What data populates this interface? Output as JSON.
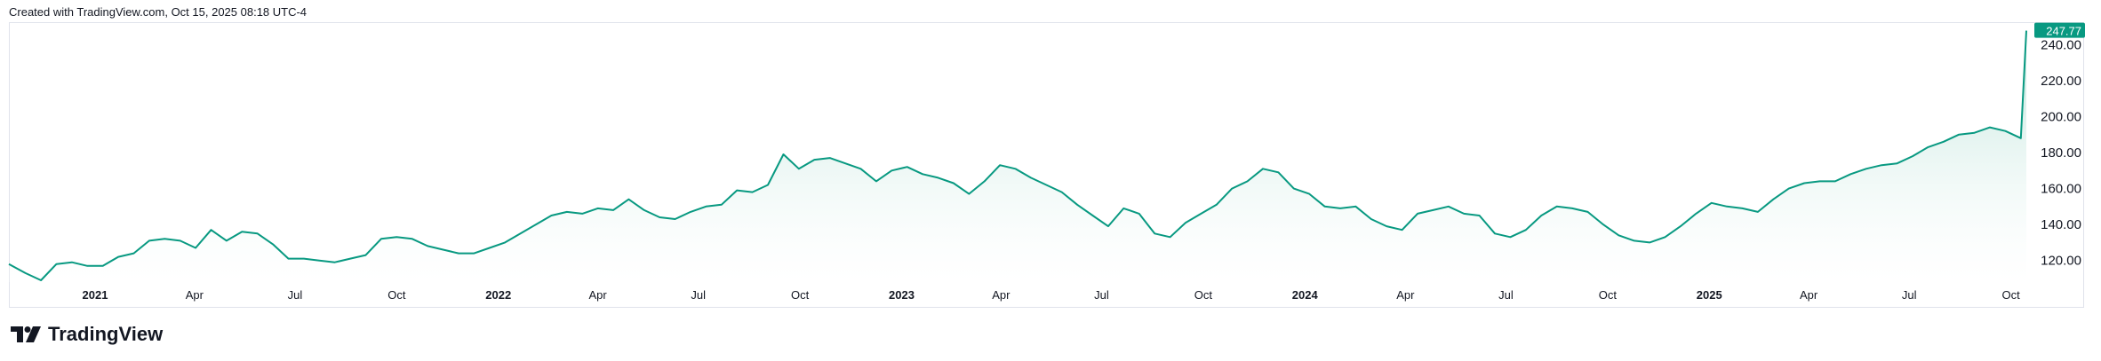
{
  "header": {
    "text": "Created with TradingView.com, Oct 15, 2025 08:18 UTC-4"
  },
  "brand": {
    "name": "TradingView"
  },
  "colors": {
    "line": "#089981",
    "fill_top": "#b2dfd4",
    "fill_bottom": "#ffffff",
    "tag": "#089981"
  },
  "chart_data": {
    "type": "area",
    "title": "",
    "xlabel": "",
    "ylabel": "",
    "y_axis_side": "right",
    "ylim": [
      108,
      252
    ],
    "y_ticks": [
      "120.00",
      "140.00",
      "160.00",
      "180.00",
      "200.00",
      "220.00",
      "240.00"
    ],
    "last_price_label": "247.77",
    "x_tick_labels": [
      {
        "label": "2021",
        "date": "2021-01-01",
        "bold": true
      },
      {
        "label": "Apr",
        "date": "2021-04-01",
        "bold": false
      },
      {
        "label": "Jul",
        "date": "2021-07-01",
        "bold": false
      },
      {
        "label": "Oct",
        "date": "2021-10-01",
        "bold": false
      },
      {
        "label": "2022",
        "date": "2022-01-01",
        "bold": true
      },
      {
        "label": "Apr",
        "date": "2022-04-01",
        "bold": false
      },
      {
        "label": "Jul",
        "date": "2022-07-01",
        "bold": false
      },
      {
        "label": "Oct",
        "date": "2022-10-01",
        "bold": false
      },
      {
        "label": "2023",
        "date": "2023-01-01",
        "bold": true
      },
      {
        "label": "Apr",
        "date": "2023-04-01",
        "bold": false
      },
      {
        "label": "Jul",
        "date": "2023-07-01",
        "bold": false
      },
      {
        "label": "Oct",
        "date": "2023-10-01",
        "bold": false
      },
      {
        "label": "2024",
        "date": "2024-01-01",
        "bold": true
      },
      {
        "label": "Apr",
        "date": "2024-04-01",
        "bold": false
      },
      {
        "label": "Jul",
        "date": "2024-07-01",
        "bold": false
      },
      {
        "label": "Oct",
        "date": "2024-10-01",
        "bold": false
      },
      {
        "label": "2025",
        "date": "2025-01-01",
        "bold": true
      },
      {
        "label": "Apr",
        "date": "2025-04-01",
        "bold": false
      },
      {
        "label": "Jul",
        "date": "2025-07-01",
        "bold": false
      },
      {
        "label": "Oct",
        "date": "2025-10-01",
        "bold": false
      }
    ],
    "series": [
      {
        "points": [
          [
            "2020-10-15",
            118
          ],
          [
            "2020-10-30",
            113
          ],
          [
            "2020-11-13",
            109
          ],
          [
            "2020-11-27",
            118
          ],
          [
            "2020-12-11",
            119
          ],
          [
            "2020-12-25",
            117
          ],
          [
            "2021-01-08",
            117
          ],
          [
            "2021-01-22",
            122
          ],
          [
            "2021-02-05",
            124
          ],
          [
            "2021-02-19",
            131
          ],
          [
            "2021-03-05",
            132
          ],
          [
            "2021-03-19",
            131
          ],
          [
            "2021-04-02",
            127
          ],
          [
            "2021-04-16",
            137
          ],
          [
            "2021-04-30",
            131
          ],
          [
            "2021-05-14",
            136
          ],
          [
            "2021-05-28",
            135
          ],
          [
            "2021-06-11",
            129
          ],
          [
            "2021-06-25",
            121
          ],
          [
            "2021-07-09",
            121
          ],
          [
            "2021-07-23",
            120
          ],
          [
            "2021-08-06",
            119
          ],
          [
            "2021-08-20",
            121
          ],
          [
            "2021-09-03",
            123
          ],
          [
            "2021-09-17",
            132
          ],
          [
            "2021-10-01",
            133
          ],
          [
            "2021-10-15",
            132
          ],
          [
            "2021-10-29",
            128
          ],
          [
            "2021-11-12",
            126
          ],
          [
            "2021-11-26",
            124
          ],
          [
            "2021-12-10",
            124
          ],
          [
            "2021-12-24",
            127
          ],
          [
            "2022-01-07",
            130
          ],
          [
            "2022-01-21",
            135
          ],
          [
            "2022-02-04",
            140
          ],
          [
            "2022-02-18",
            145
          ],
          [
            "2022-03-04",
            147
          ],
          [
            "2022-03-18",
            146
          ],
          [
            "2022-04-01",
            149
          ],
          [
            "2022-04-15",
            148
          ],
          [
            "2022-04-29",
            154
          ],
          [
            "2022-05-13",
            148
          ],
          [
            "2022-05-27",
            144
          ],
          [
            "2022-06-10",
            143
          ],
          [
            "2022-06-24",
            147
          ],
          [
            "2022-07-08",
            150
          ],
          [
            "2022-07-22",
            151
          ],
          [
            "2022-08-05",
            159
          ],
          [
            "2022-08-19",
            158
          ],
          [
            "2022-09-02",
            162
          ],
          [
            "2022-09-16",
            179
          ],
          [
            "2022-09-30",
            171
          ],
          [
            "2022-10-14",
            176
          ],
          [
            "2022-10-28",
            177
          ],
          [
            "2022-11-11",
            174
          ],
          [
            "2022-11-25",
            171
          ],
          [
            "2022-12-09",
            164
          ],
          [
            "2022-12-23",
            170
          ],
          [
            "2023-01-06",
            172
          ],
          [
            "2023-01-20",
            168
          ],
          [
            "2023-02-03",
            166
          ],
          [
            "2023-02-17",
            163
          ],
          [
            "2023-03-03",
            157
          ],
          [
            "2023-03-17",
            164
          ],
          [
            "2023-03-31",
            173
          ],
          [
            "2023-04-14",
            171
          ],
          [
            "2023-04-28",
            166
          ],
          [
            "2023-05-12",
            162
          ],
          [
            "2023-05-26",
            158
          ],
          [
            "2023-06-09",
            151
          ],
          [
            "2023-06-23",
            145
          ],
          [
            "2023-07-07",
            139
          ],
          [
            "2023-07-21",
            149
          ],
          [
            "2023-08-04",
            146
          ],
          [
            "2023-08-18",
            135
          ],
          [
            "2023-09-01",
            133
          ],
          [
            "2023-09-15",
            141
          ],
          [
            "2023-09-29",
            146
          ],
          [
            "2023-10-13",
            151
          ],
          [
            "2023-10-27",
            160
          ],
          [
            "2023-11-10",
            164
          ],
          [
            "2023-11-24",
            171
          ],
          [
            "2023-12-08",
            169
          ],
          [
            "2023-12-22",
            160
          ],
          [
            "2024-01-05",
            157
          ],
          [
            "2024-01-19",
            150
          ],
          [
            "2024-02-02",
            149
          ],
          [
            "2024-02-16",
            150
          ],
          [
            "2024-03-01",
            143
          ],
          [
            "2024-03-15",
            139
          ],
          [
            "2024-03-29",
            137
          ],
          [
            "2024-04-12",
            146
          ],
          [
            "2024-04-26",
            148
          ],
          [
            "2024-05-10",
            150
          ],
          [
            "2024-05-24",
            146
          ],
          [
            "2024-06-07",
            145
          ],
          [
            "2024-06-21",
            135
          ],
          [
            "2024-07-05",
            133
          ],
          [
            "2024-07-19",
            137
          ],
          [
            "2024-08-02",
            145
          ],
          [
            "2024-08-16",
            150
          ],
          [
            "2024-08-30",
            149
          ],
          [
            "2024-09-13",
            147
          ],
          [
            "2024-09-27",
            140
          ],
          [
            "2024-10-11",
            134
          ],
          [
            "2024-10-25",
            131
          ],
          [
            "2024-11-08",
            130
          ],
          [
            "2024-11-22",
            133
          ],
          [
            "2024-12-06",
            139
          ],
          [
            "2024-12-20",
            146
          ],
          [
            "2025-01-03",
            152
          ],
          [
            "2025-01-17",
            150
          ],
          [
            "2025-01-31",
            149
          ],
          [
            "2025-02-14",
            147
          ],
          [
            "2025-02-28",
            154
          ],
          [
            "2025-03-14",
            160
          ],
          [
            "2025-03-28",
            163
          ],
          [
            "2025-04-11",
            164
          ],
          [
            "2025-04-25",
            164
          ],
          [
            "2025-05-09",
            168
          ],
          [
            "2025-05-23",
            171
          ],
          [
            "2025-06-06",
            173
          ],
          [
            "2025-06-20",
            174
          ],
          [
            "2025-07-04",
            178
          ],
          [
            "2025-07-18",
            183
          ],
          [
            "2025-08-01",
            186
          ],
          [
            "2025-08-15",
            190
          ],
          [
            "2025-08-29",
            191
          ],
          [
            "2025-09-12",
            194
          ],
          [
            "2025-09-26",
            192
          ],
          [
            "2025-10-10",
            188
          ],
          [
            "2025-10-15",
            247.77
          ]
        ]
      }
    ]
  }
}
